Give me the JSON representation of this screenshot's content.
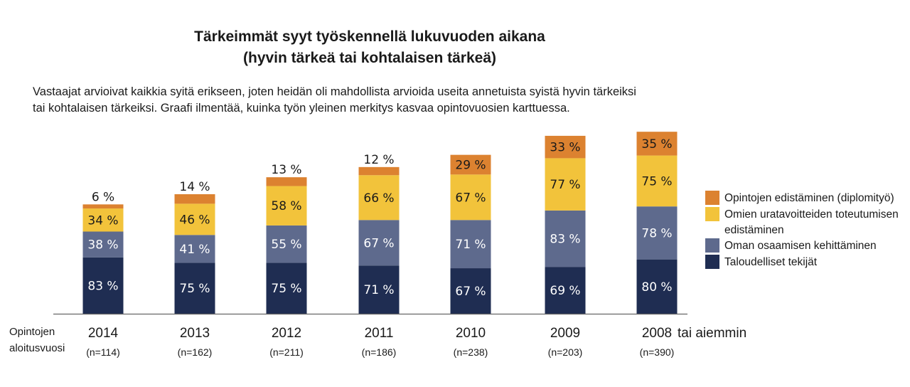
{
  "title_line1": "Tärkeimmät syyt työskennellä lukuvuoden aikana",
  "title_line2": "(hyvin tärkeä tai kohtalaisen tärkeä)",
  "description_line1": "Vastaajat arvioivat kaikkia syitä erikseen, joten heidän oli mahdollista arvioida useita annetuista syistä hyvin tärkeiksi",
  "description_line2": "tai kohtalaisen tärkeiksi. Graafi ilmentää, kuinka työn yleinen merkitys kasvaa opintovuosien karttuessa.",
  "chart_data": {
    "type": "bar",
    "stacked": true,
    "value_suffix": " %",
    "x_axis_title": [
      "Opintojen",
      "aloitusvuosi"
    ],
    "x_suffix": "tai aiemmin",
    "categories": [
      "2014",
      "2013",
      "2012",
      "2011",
      "2010",
      "2009",
      "2008"
    ],
    "sample_sizes": [
      "(n=114)",
      "(n=162)",
      "(n=211)",
      "(n=186)",
      "(n=238)",
      "(n=203)",
      "(n=390)"
    ],
    "series": [
      {
        "name": "Taloudelliset tekijät",
        "color": "#1f2d52",
        "text_color": "#ffffff",
        "values": [
          83,
          75,
          75,
          71,
          67,
          69,
          80
        ]
      },
      {
        "name": "Oman osaamisen kehittäminen",
        "color": "#5e6a8d",
        "text_color": "#ffffff",
        "values": [
          38,
          41,
          55,
          67,
          71,
          83,
          78
        ]
      },
      {
        "name": "Omien uratavoitteiden toteutumisen edistäminen",
        "color": "#f2c33b",
        "text_color": "#1a1a1a",
        "values": [
          34,
          46,
          58,
          66,
          67,
          77,
          75
        ]
      },
      {
        "name": "Opintojen edistäminen (diplomityö)",
        "color": "#dc8230",
        "text_color": "#1a1a1a",
        "values": [
          6,
          14,
          13,
          12,
          29,
          33,
          35
        ]
      }
    ],
    "legend": {
      "placement": "right",
      "order": [
        {
          "series_index": 3,
          "lines": [
            "Opintojen edistäminen (diplomityö)"
          ]
        },
        {
          "series_index": 2,
          "lines": [
            "Omien uratavoitteiden toteutumisen",
            "edistäminen"
          ]
        },
        {
          "series_index": 1,
          "lines": [
            "Oman osaamisen kehittäminen"
          ]
        },
        {
          "series_index": 0,
          "lines": [
            "Taloudelliset tekijät"
          ]
        }
      ]
    },
    "grid": false
  }
}
